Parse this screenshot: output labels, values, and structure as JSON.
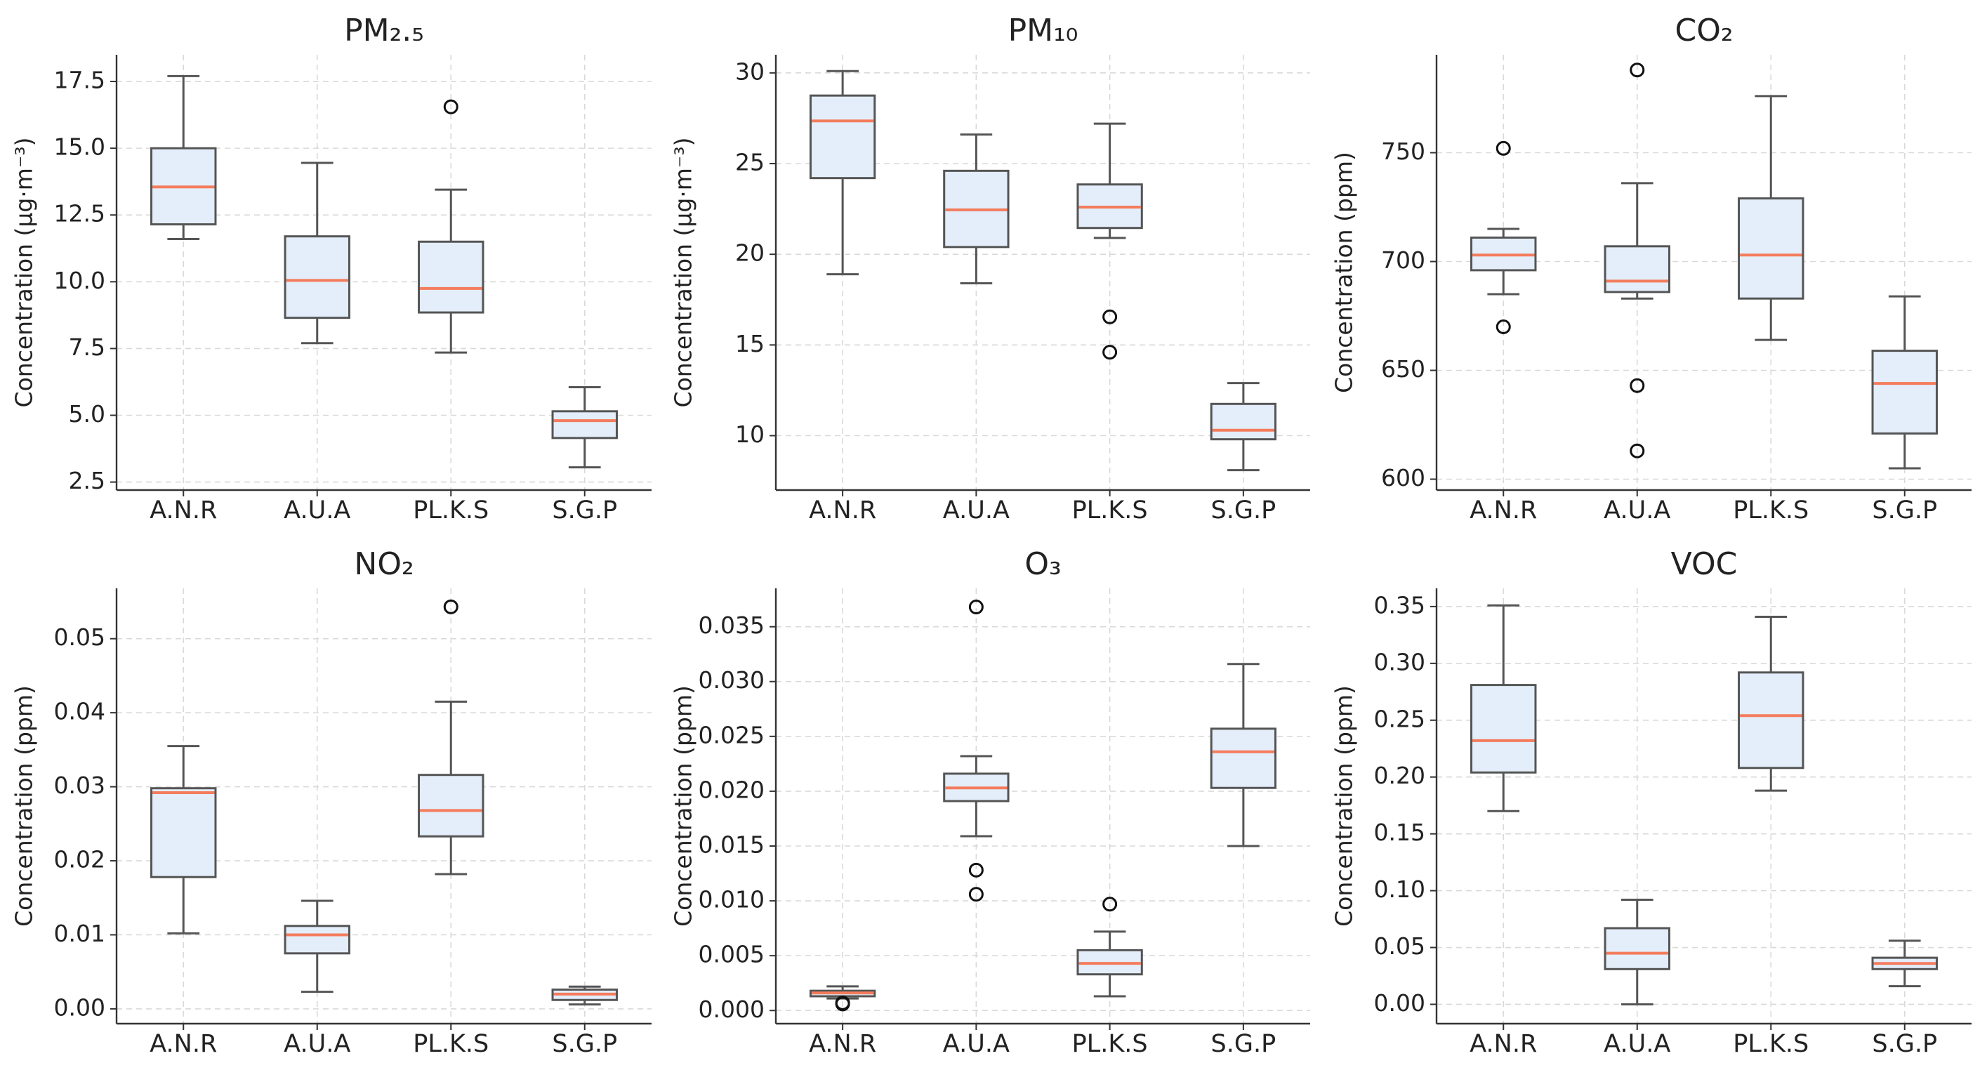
{
  "colors": {
    "box_fill": "#e3eefa",
    "box_edge": "#555555",
    "median": "#f47c5c",
    "grid": "#d9d9d9",
    "axis": "#333333",
    "text": "#222222"
  },
  "chart_data": [
    {
      "type": "box",
      "title": "PM₂.₅",
      "ylabel": "Concentration (μg·m⁻³)",
      "categories": [
        "A.N.R",
        "A.U.A",
        "PL.K.S",
        "S.G.P"
      ],
      "ylim": [
        2.2,
        18.5
      ],
      "yticks": [
        2.5,
        5.0,
        7.5,
        10.0,
        12.5,
        15.0,
        17.5
      ],
      "ytick_labels": [
        "2.5",
        "5.0",
        "7.5",
        "10.0",
        "12.5",
        "15.0",
        "17.5"
      ],
      "grid": true,
      "boxes": [
        {
          "whislo": 11.6,
          "q1": 12.15,
          "med": 13.55,
          "q3": 15.0,
          "whishi": 17.7,
          "fliers": []
        },
        {
          "whislo": 7.7,
          "q1": 8.65,
          "med": 10.05,
          "q3": 11.7,
          "whishi": 14.45,
          "fliers": []
        },
        {
          "whislo": 7.35,
          "q1": 8.85,
          "med": 9.75,
          "q3": 11.5,
          "whishi": 13.45,
          "fliers": [
            16.55
          ]
        },
        {
          "whislo": 3.05,
          "q1": 4.15,
          "med": 4.8,
          "q3": 5.15,
          "whishi": 6.05,
          "fliers": []
        }
      ]
    },
    {
      "type": "box",
      "title": "PM₁₀",
      "ylabel": "Concentration (μg·m⁻³)",
      "categories": [
        "A.N.R",
        "A.U.A",
        "PL.K.S",
        "S.G.P"
      ],
      "ylim": [
        7.0,
        31.0
      ],
      "yticks": [
        10,
        15,
        20,
        25,
        30
      ],
      "ytick_labels": [
        "10",
        "15",
        "20",
        "25",
        "30"
      ],
      "grid": true,
      "boxes": [
        {
          "whislo": 18.9,
          "q1": 24.2,
          "med": 27.35,
          "q3": 28.75,
          "whishi": 30.1,
          "fliers": []
        },
        {
          "whislo": 18.4,
          "q1": 20.4,
          "med": 22.45,
          "q3": 24.6,
          "whishi": 26.6,
          "fliers": []
        },
        {
          "whislo": 20.9,
          "q1": 21.45,
          "med": 22.6,
          "q3": 23.85,
          "whishi": 27.2,
          "fliers": [
            16.55,
            14.6
          ]
        },
        {
          "whislo": 8.1,
          "q1": 9.8,
          "med": 10.3,
          "q3": 11.75,
          "whishi": 12.9,
          "fliers": []
        }
      ]
    },
    {
      "type": "box",
      "title": "CO₂",
      "ylabel": "Concentration (ppm)",
      "categories": [
        "A.N.R",
        "A.U.A",
        "PL.K.S",
        "S.G.P"
      ],
      "ylim": [
        595,
        795
      ],
      "yticks": [
        600,
        650,
        700,
        750
      ],
      "ytick_labels": [
        "600",
        "650",
        "700",
        "750"
      ],
      "grid": true,
      "boxes": [
        {
          "whislo": 685,
          "q1": 696,
          "med": 703,
          "q3": 711,
          "whishi": 715,
          "fliers": [
            752,
            670
          ]
        },
        {
          "whislo": 683,
          "q1": 686,
          "med": 691,
          "q3": 707,
          "whishi": 736,
          "fliers": [
            788,
            643,
            613
          ]
        },
        {
          "whislo": 664,
          "q1": 683,
          "med": 703,
          "q3": 729,
          "whishi": 776,
          "fliers": []
        },
        {
          "whislo": 605,
          "q1": 621,
          "med": 644,
          "q3": 659,
          "whishi": 684,
          "fliers": []
        }
      ]
    },
    {
      "type": "box",
      "title": "NO₂",
      "ylabel": "Concentration (ppm)",
      "categories": [
        "A.N.R",
        "A.U.A",
        "PL.K.S",
        "S.G.P"
      ],
      "ylim": [
        -0.002,
        0.0568
      ],
      "yticks": [
        0.0,
        0.01,
        0.02,
        0.03,
        0.04,
        0.05
      ],
      "ytick_labels": [
        "0.00",
        "0.01",
        "0.02",
        "0.03",
        "0.04",
        "0.05"
      ],
      "grid": true,
      "boxes": [
        {
          "whislo": 0.0102,
          "q1": 0.0178,
          "med": 0.0292,
          "q3": 0.0298,
          "whishi": 0.0355,
          "fliers": []
        },
        {
          "whislo": 0.0023,
          "q1": 0.0075,
          "med": 0.01,
          "q3": 0.0112,
          "whishi": 0.0146,
          "fliers": []
        },
        {
          "whislo": 0.0182,
          "q1": 0.0233,
          "med": 0.0268,
          "q3": 0.0316,
          "whishi": 0.0415,
          "fliers": [
            0.0543
          ]
        },
        {
          "whislo": 0.0006,
          "q1": 0.0012,
          "med": 0.002,
          "q3": 0.0026,
          "whishi": 0.003,
          "fliers": []
        }
      ]
    },
    {
      "type": "box",
      "title": "O₃",
      "ylabel": "Concentration (ppm)",
      "categories": [
        "A.N.R",
        "A.U.A",
        "PL.K.S",
        "S.G.P"
      ],
      "ylim": [
        -0.0012,
        0.0385
      ],
      "yticks": [
        0.0,
        0.005,
        0.01,
        0.015,
        0.02,
        0.025,
        0.03,
        0.035
      ],
      "ytick_labels": [
        "0.000",
        "0.005",
        "0.010",
        "0.015",
        "0.020",
        "0.025",
        "0.030",
        "0.035"
      ],
      "grid": true,
      "boxes": [
        {
          "whislo": 0.0011,
          "q1": 0.0013,
          "med": 0.0016,
          "q3": 0.0018,
          "whishi": 0.0022,
          "fliers": [
            0.0007,
            0.0006
          ]
        },
        {
          "whislo": 0.0159,
          "q1": 0.0191,
          "med": 0.0203,
          "q3": 0.0216,
          "whishi": 0.0232,
          "fliers": [
            0.0368,
            0.0128,
            0.0106
          ]
        },
        {
          "whislo": 0.0013,
          "q1": 0.0033,
          "med": 0.0043,
          "q3": 0.0055,
          "whishi": 0.0072,
          "fliers": [
            0.0097
          ]
        },
        {
          "whislo": 0.015,
          "q1": 0.0203,
          "med": 0.0236,
          "q3": 0.0257,
          "whishi": 0.0316,
          "fliers": []
        }
      ]
    },
    {
      "type": "box",
      "title": "VOC",
      "ylabel": "Concentration (ppm)",
      "categories": [
        "A.N.R",
        "A.U.A",
        "PL.K.S",
        "S.G.P"
      ],
      "ylim": [
        -0.017,
        0.366
      ],
      "yticks": [
        0.0,
        0.05,
        0.1,
        0.15,
        0.2,
        0.25,
        0.3,
        0.35
      ],
      "ytick_labels": [
        "0.00",
        "0.05",
        "0.10",
        "0.15",
        "0.20",
        "0.25",
        "0.30",
        "0.35"
      ],
      "grid": true,
      "boxes": [
        {
          "whislo": 0.17,
          "q1": 0.204,
          "med": 0.232,
          "q3": 0.281,
          "whishi": 0.351,
          "fliers": []
        },
        {
          "whislo": 0.0,
          "q1": 0.031,
          "med": 0.045,
          "q3": 0.067,
          "whishi": 0.092,
          "fliers": []
        },
        {
          "whislo": 0.188,
          "q1": 0.208,
          "med": 0.254,
          "q3": 0.292,
          "whishi": 0.341,
          "fliers": []
        },
        {
          "whislo": 0.016,
          "q1": 0.031,
          "med": 0.036,
          "q3": 0.041,
          "whishi": 0.056,
          "fliers": []
        }
      ]
    }
  ]
}
